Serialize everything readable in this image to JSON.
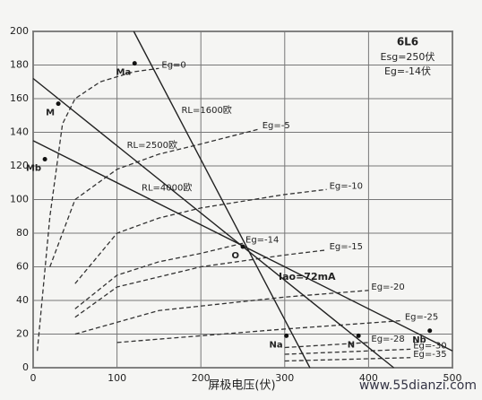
{
  "chart_data": {
    "type": "line",
    "title": "6L6",
    "subtitle": [
      "Esg=250伏",
      "Eg=-14伏"
    ],
    "x_label": "屏极电压(伏)",
    "watermark": "www.55dianzi.com",
    "annotation": "Iao=72mA",
    "xlim": [
      0,
      500
    ],
    "xticks": [
      0,
      100,
      200,
      300,
      400,
      500
    ],
    "ylim": [
      0,
      200
    ],
    "yticks": [
      0,
      20,
      40,
      60,
      80,
      100,
      120,
      140,
      160,
      180,
      200
    ],
    "grid": true,
    "series": [
      {
        "name": "Eg=0",
        "style": "dashed",
        "color": "#333333",
        "x": [
          5,
          20,
          35,
          50,
          80,
          120,
          150
        ],
        "values": [
          10,
          90,
          145,
          160,
          170,
          176,
          178
        ]
      },
      {
        "name": "Eg=-5",
        "style": "dashed",
        "color": "#333333",
        "x": [
          20,
          50,
          100,
          150,
          200,
          270
        ],
        "values": [
          60,
          100,
          118,
          127,
          133,
          142
        ]
      },
      {
        "name": "Eg=-10",
        "style": "dashed",
        "color": "#333333",
        "x": [
          50,
          100,
          150,
          200,
          300,
          350
        ],
        "values": [
          50,
          80,
          89,
          95,
          103,
          106
        ]
      },
      {
        "name": "Eg=-14",
        "style": "dashed",
        "color": "#333333",
        "x": [
          50,
          100,
          150,
          200,
          250
        ],
        "values": [
          35,
          55,
          63,
          68,
          74
        ]
      },
      {
        "name": "Eg=-15",
        "style": "dashed",
        "color": "#333333",
        "x": [
          50,
          100,
          200,
          300,
          350
        ],
        "values": [
          30,
          48,
          60,
          67,
          70
        ]
      },
      {
        "name": "Eg=-20",
        "style": "dashed",
        "color": "#333333",
        "x": [
          50,
          150,
          300,
          400
        ],
        "values": [
          20,
          34,
          42,
          46
        ]
      },
      {
        "name": "Eg=-25",
        "style": "dashed",
        "color": "#333333",
        "x": [
          100,
          300,
          440
        ],
        "values": [
          15,
          23,
          28
        ]
      },
      {
        "name": "Eg=-28",
        "style": "dashed",
        "color": "#333333",
        "x": [
          300,
          400
        ],
        "values": [
          12,
          15
        ]
      },
      {
        "name": "Eg=-30",
        "style": "dashed",
        "color": "#333333",
        "x": [
          300,
          450
        ],
        "values": [
          8,
          11
        ]
      },
      {
        "name": "Eg=-35",
        "style": "dashed",
        "color": "#333333",
        "x": [
          300,
          450
        ],
        "values": [
          4,
          6
        ]
      },
      {
        "name": "RL=1600欧",
        "style": "solid",
        "color": "#222222",
        "x": [
          120,
          330
        ],
        "values": [
          200,
          0
        ]
      },
      {
        "name": "RL=2500欧",
        "style": "solid",
        "color": "#222222",
        "x": [
          0,
          430
        ],
        "values": [
          172,
          0
        ]
      },
      {
        "name": "RL=4000欧",
        "style": "solid",
        "color": "#222222",
        "x": [
          0,
          500
        ],
        "values": [
          135,
          10
        ]
      }
    ],
    "points": [
      {
        "label": "M",
        "x": 30,
        "y": 157
      },
      {
        "label": "Ma",
        "x": 121,
        "y": 181
      },
      {
        "label": "Mb",
        "x": 14,
        "y": 124
      },
      {
        "label": "O",
        "x": 250,
        "y": 72
      },
      {
        "label": "Na",
        "x": 302,
        "y": 19
      },
      {
        "label": "N",
        "x": 388,
        "y": 19
      },
      {
        "label": "Nb",
        "x": 473,
        "y": 22
      }
    ]
  }
}
